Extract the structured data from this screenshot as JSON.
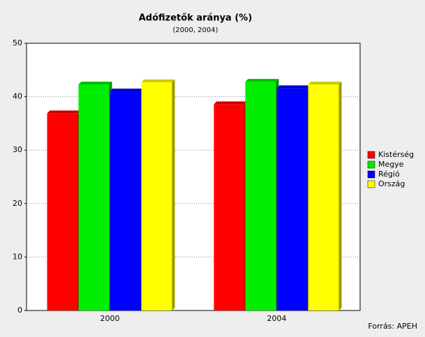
{
  "chart_data": {
    "type": "bar",
    "title": "Adófizetők aránya (%)",
    "subtitle": "(2000, 2004)",
    "categories": [
      "2000",
      "2004"
    ],
    "series": [
      {
        "name": "Kistérség",
        "color": "#ff0000",
        "values": [
          36.9,
          38.6
        ]
      },
      {
        "name": "Megye",
        "color": "#00ee00",
        "values": [
          42.3,
          42.8
        ]
      },
      {
        "name": "Régió",
        "color": "#0000ff",
        "values": [
          41.0,
          41.6
        ]
      },
      {
        "name": "Ország",
        "color": "#ffff00",
        "values": [
          42.7,
          42.3
        ]
      }
    ],
    "ylim": [
      0,
      50
    ],
    "yticks": [
      0,
      10,
      20,
      30,
      40,
      50
    ],
    "grid": true,
    "legend": "right",
    "source": "Forrás: APEH"
  }
}
